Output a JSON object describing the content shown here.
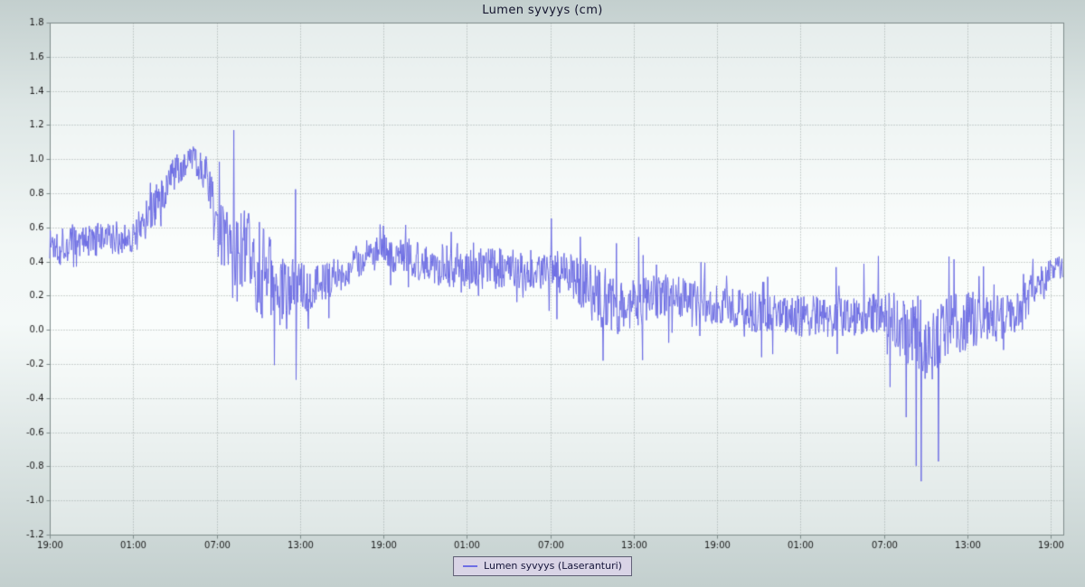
{
  "chart_data": {
    "type": "line",
    "title": "Lumen syvyys (cm)",
    "series_name": "Lumen syvyys (Laseranturi)",
    "xlabel": "",
    "ylabel": "",
    "ylim": [
      -1.2,
      1.8
    ],
    "ytick_step": 0.2,
    "xtick_labels": [
      "19:00",
      "01:00",
      "07:00",
      "13:00",
      "19:00",
      "01:00",
      "07:00",
      "13:00",
      "19:00",
      "01:00",
      "07:00",
      "13:00",
      "19:00"
    ],
    "xtick_interval_hours": 6,
    "x_total_hours": 72.9,
    "grid": true,
    "legend_position": "bottom-center",
    "line_color": "#6e6ee4",
    "description": "Very noisy laser snow-depth sensor trace over ~3 days; envelope keypoints below describe mean level, noise half-range, max spike size and spike direction bias along time.",
    "keypoints_format": [
      "t_hours",
      "mean_cm",
      "noise_halfrange_cm",
      "spike_max_cm",
      "spike_direction_bias"
    ],
    "keypoints": [
      [
        0.0,
        0.5,
        0.13,
        0.2,
        0
      ],
      [
        3.0,
        0.52,
        0.1,
        0.15,
        0
      ],
      [
        6.0,
        0.55,
        0.1,
        0.2,
        0
      ],
      [
        7.5,
        0.72,
        0.12,
        0.2,
        0
      ],
      [
        9.0,
        0.92,
        0.1,
        0.15,
        0
      ],
      [
        10.3,
        1.0,
        0.08,
        0.1,
        0
      ],
      [
        11.3,
        0.92,
        0.1,
        0.2,
        -0.2
      ],
      [
        12.0,
        0.62,
        0.16,
        0.35,
        0
      ],
      [
        13.0,
        0.45,
        0.26,
        0.75,
        0.2
      ],
      [
        14.4,
        0.4,
        0.3,
        1.1,
        0.1
      ],
      [
        15.5,
        0.33,
        0.3,
        0.8,
        -0.1
      ],
      [
        16.5,
        0.2,
        0.24,
        0.7,
        -0.3
      ],
      [
        17.4,
        0.22,
        0.2,
        0.8,
        0.4
      ],
      [
        18.0,
        0.25,
        0.17,
        0.55,
        0.2
      ],
      [
        19.5,
        0.28,
        0.12,
        0.3,
        0
      ],
      [
        21.0,
        0.33,
        0.1,
        0.2,
        0
      ],
      [
        22.5,
        0.42,
        0.1,
        0.25,
        0
      ],
      [
        24.0,
        0.46,
        0.1,
        0.25,
        0.4
      ],
      [
        26.0,
        0.42,
        0.12,
        0.25,
        0
      ],
      [
        28.0,
        0.38,
        0.12,
        0.22,
        0
      ],
      [
        30.0,
        0.36,
        0.12,
        0.25,
        0
      ],
      [
        33.0,
        0.35,
        0.13,
        0.25,
        0
      ],
      [
        36.0,
        0.35,
        0.12,
        0.32,
        0.3
      ],
      [
        38.0,
        0.3,
        0.15,
        0.3,
        0
      ],
      [
        39.5,
        0.2,
        0.2,
        0.52,
        -0.5
      ],
      [
        41.0,
        0.12,
        0.18,
        0.5,
        -0.3
      ],
      [
        42.0,
        0.15,
        0.15,
        0.4,
        0
      ],
      [
        44.0,
        0.2,
        0.13,
        0.32,
        0.2
      ],
      [
        46.0,
        0.18,
        0.12,
        0.25,
        0
      ],
      [
        48.0,
        0.14,
        0.12,
        0.25,
        0
      ],
      [
        51.0,
        0.1,
        0.12,
        0.26,
        0
      ],
      [
        54.0,
        0.08,
        0.12,
        0.3,
        0
      ],
      [
        57.0,
        0.08,
        0.13,
        0.32,
        0
      ],
      [
        59.0,
        0.1,
        0.13,
        0.42,
        0.3
      ],
      [
        60.0,
        0.08,
        0.15,
        0.35,
        0
      ],
      [
        61.5,
        0.0,
        0.2,
        0.5,
        -0.5
      ],
      [
        62.5,
        -0.05,
        0.25,
        1.0,
        -0.6
      ],
      [
        63.5,
        -0.05,
        0.25,
        0.85,
        -0.7
      ],
      [
        64.5,
        0.0,
        0.2,
        0.65,
        -0.5
      ],
      [
        66.0,
        0.05,
        0.18,
        0.55,
        -0.3
      ],
      [
        67.5,
        0.05,
        0.15,
        0.4,
        -0.2
      ],
      [
        69.0,
        0.08,
        0.13,
        0.3,
        0
      ],
      [
        70.5,
        0.2,
        0.12,
        0.25,
        0
      ],
      [
        71.5,
        0.3,
        0.1,
        0.2,
        0
      ],
      [
        72.0,
        0.35,
        0.08,
        0.2,
        0.3
      ],
      [
        72.9,
        0.36,
        0.07,
        0.1,
        0
      ]
    ],
    "sample_step_hours": 0.04,
    "spike_probability": 0.035
  },
  "colors": {
    "line": "#6e6ee4",
    "grid_dots": "#9fa8a7",
    "plot_border": "#7e8b8a",
    "tick_text": "#1a1a1a",
    "legend_bg": "#d9d4e6",
    "legend_border": "#5d5d72",
    "title_text": "#14142e"
  }
}
